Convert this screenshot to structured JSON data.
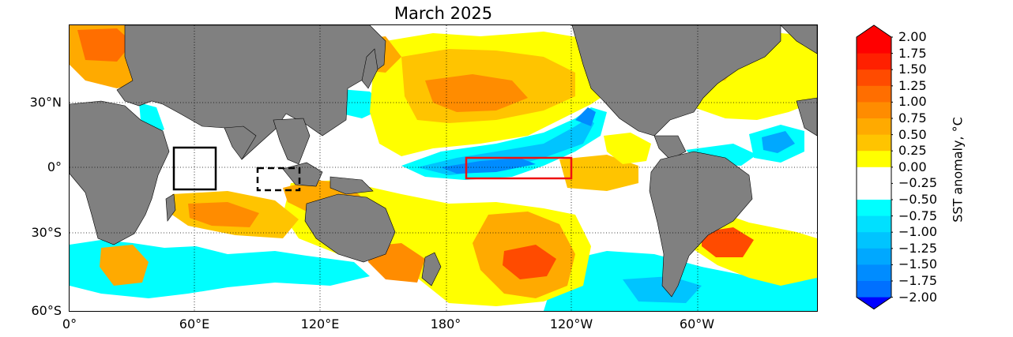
{
  "title": "March 2025",
  "map": {
    "projection": "equirectangular, centred on 180°, 0° to 360° longitude, 60°S to ~78°N latitude",
    "field": "SST anomaly",
    "grid": "dotted graticule every 60° longitude and 30° latitude",
    "land_color": "#808080",
    "lat_ticks": [
      "30°N",
      "0°",
      "30°S",
      "60°S"
    ],
    "lon_ticks": [
      "0°",
      "60°E",
      "120°E",
      "180°",
      "120°W",
      "60°W"
    ],
    "boxes": [
      {
        "name": "western Indian Ocean box",
        "style": "solid black",
        "lon": [
          50,
          70
        ],
        "lat": [
          -10,
          10
        ]
      },
      {
        "name": "south-eastern Indian Ocean box",
        "style": "dashed black",
        "lon": [
          90,
          110
        ],
        "lat": [
          -10,
          0
        ]
      },
      {
        "name": "Niño 3.4 box",
        "style": "solid red",
        "lon": [
          190,
          240
        ],
        "lat": [
          -5,
          5
        ]
      }
    ]
  },
  "colorbar": {
    "label": "SST anomaly, °C",
    "ticks": [
      "2.00",
      "1.75",
      "1.50",
      "1.25",
      "1.00",
      "0.75",
      "0.50",
      "0.25",
      "0.00",
      "−0.25",
      "−0.50",
      "−0.75",
      "−1.00",
      "−1.25",
      "−1.50",
      "−1.75",
      "−2.00"
    ],
    "extend": "both",
    "colors_warm": [
      "#ffff00",
      "#ffe000",
      "#ffc400",
      "#ffaa00",
      "#ff8c00",
      "#ff6e00",
      "#ff4b00",
      "#ff2000",
      "#ff0000"
    ],
    "colors_cold": [
      "#00ffff",
      "#00e0ff",
      "#00c4ff",
      "#00a8ff",
      "#008cff",
      "#0070ff",
      "#0050ff",
      "#0030ff",
      "#0000ff"
    ],
    "neutral": "#ffffff"
  }
}
